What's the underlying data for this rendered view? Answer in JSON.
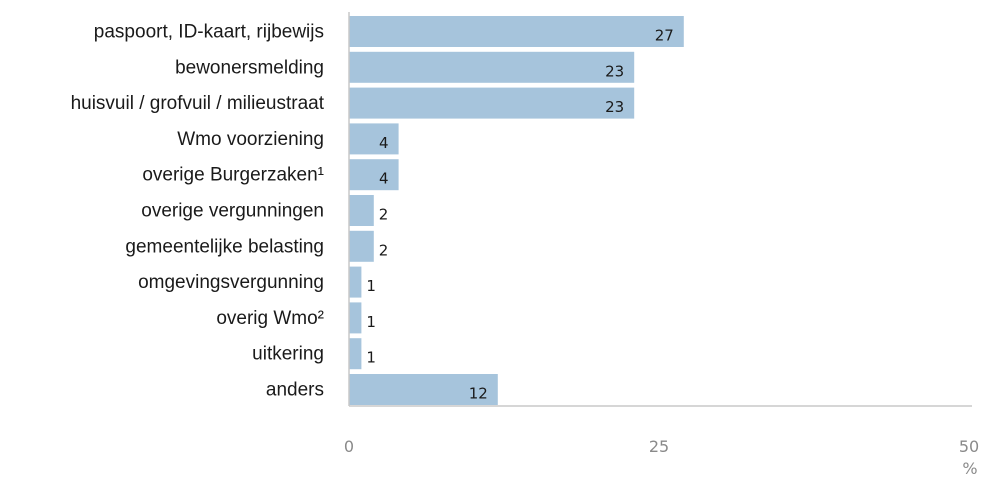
{
  "chart_data": {
    "type": "bar",
    "orientation": "horizontal",
    "categories": [
      "paspoort, ID-kaart, rijbewijs",
      "bewonersmelding",
      "huisvuil / grofvuil / milieustraat",
      "Wmo voorziening",
      "overige Burgerzaken¹",
      "overige vergunningen",
      "gemeentelijke belasting",
      "omgevingsvergunning",
      "overig Wmo²",
      "uitkering",
      "anders"
    ],
    "values": [
      27,
      23,
      23,
      4,
      4,
      2,
      2,
      1,
      1,
      1,
      12
    ],
    "value_labels": [
      "27",
      "23",
      "23",
      "4",
      "4",
      "2",
      "2",
      "1",
      "1",
      "1",
      "12"
    ],
    "xlim": [
      0,
      50
    ],
    "xticks": [
      0,
      25,
      50
    ],
    "xtick_labels": [
      "0",
      "25",
      "50"
    ],
    "xunit": "%",
    "bar_color": "#a6c4dc",
    "grid": false
  }
}
